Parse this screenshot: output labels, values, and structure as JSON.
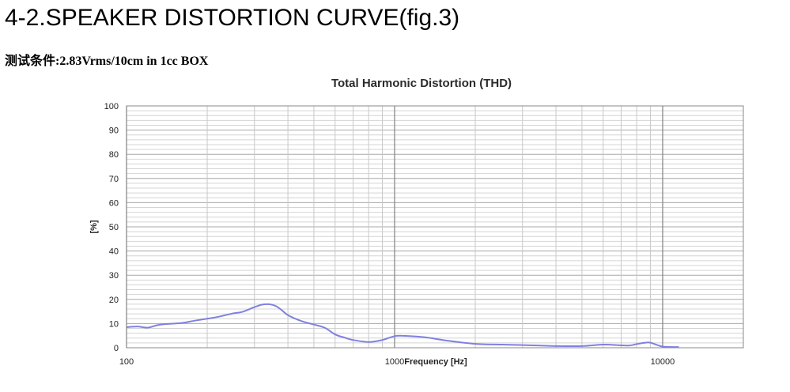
{
  "page": {
    "heading": "4-2.SPEAKER DISTORTION CURVE(fig.3)",
    "condition": "测试条件:2.83Vrms/10cm in 1cc BOX"
  },
  "chart_data": {
    "type": "line",
    "title": "Total Harmonic Distortion (THD)",
    "xlabel": "Frequency [Hz]",
    "ylabel": "[%]",
    "x_scale": "log",
    "xlim": [
      100,
      20000
    ],
    "ylim": [
      0,
      100
    ],
    "x_ticks": [
      "100",
      "1000",
      "10000"
    ],
    "y_ticks": [
      "0",
      "10",
      "20",
      "30",
      "40",
      "50",
      "60",
      "70",
      "80",
      "90",
      "100"
    ],
    "grid": true,
    "legend": "none",
    "line_color": "#8080e0",
    "series": [
      {
        "x": [
          100,
          110,
          120,
          130,
          140,
          160,
          180,
          200,
          220,
          250,
          270,
          300,
          320,
          340,
          360,
          380,
          400,
          450,
          500,
          550,
          600,
          650,
          700,
          800,
          900,
          1000,
          1100,
          1300,
          1600,
          2000,
          2500,
          3000,
          3500,
          4000,
          5000,
          6000,
          7000,
          7500,
          8000,
          8500,
          9000,
          10000,
          11500
        ],
        "y": [
          8.5,
          8.8,
          8.3,
          9.3,
          9.8,
          10.2,
          11.2,
          12,
          12.8,
          14.2,
          14.8,
          16.8,
          17.8,
          18,
          17.3,
          15.5,
          13.5,
          11,
          9.6,
          8.2,
          5.5,
          4.2,
          3.2,
          2.4,
          3.2,
          4.8,
          4.9,
          4.3,
          2.8,
          1.6,
          1.3,
          1.1,
          0.9,
          0.7,
          0.7,
          1.3,
          1.0,
          0.9,
          1.5,
          2.0,
          2.1,
          0.5,
          0.3
        ]
      }
    ]
  }
}
